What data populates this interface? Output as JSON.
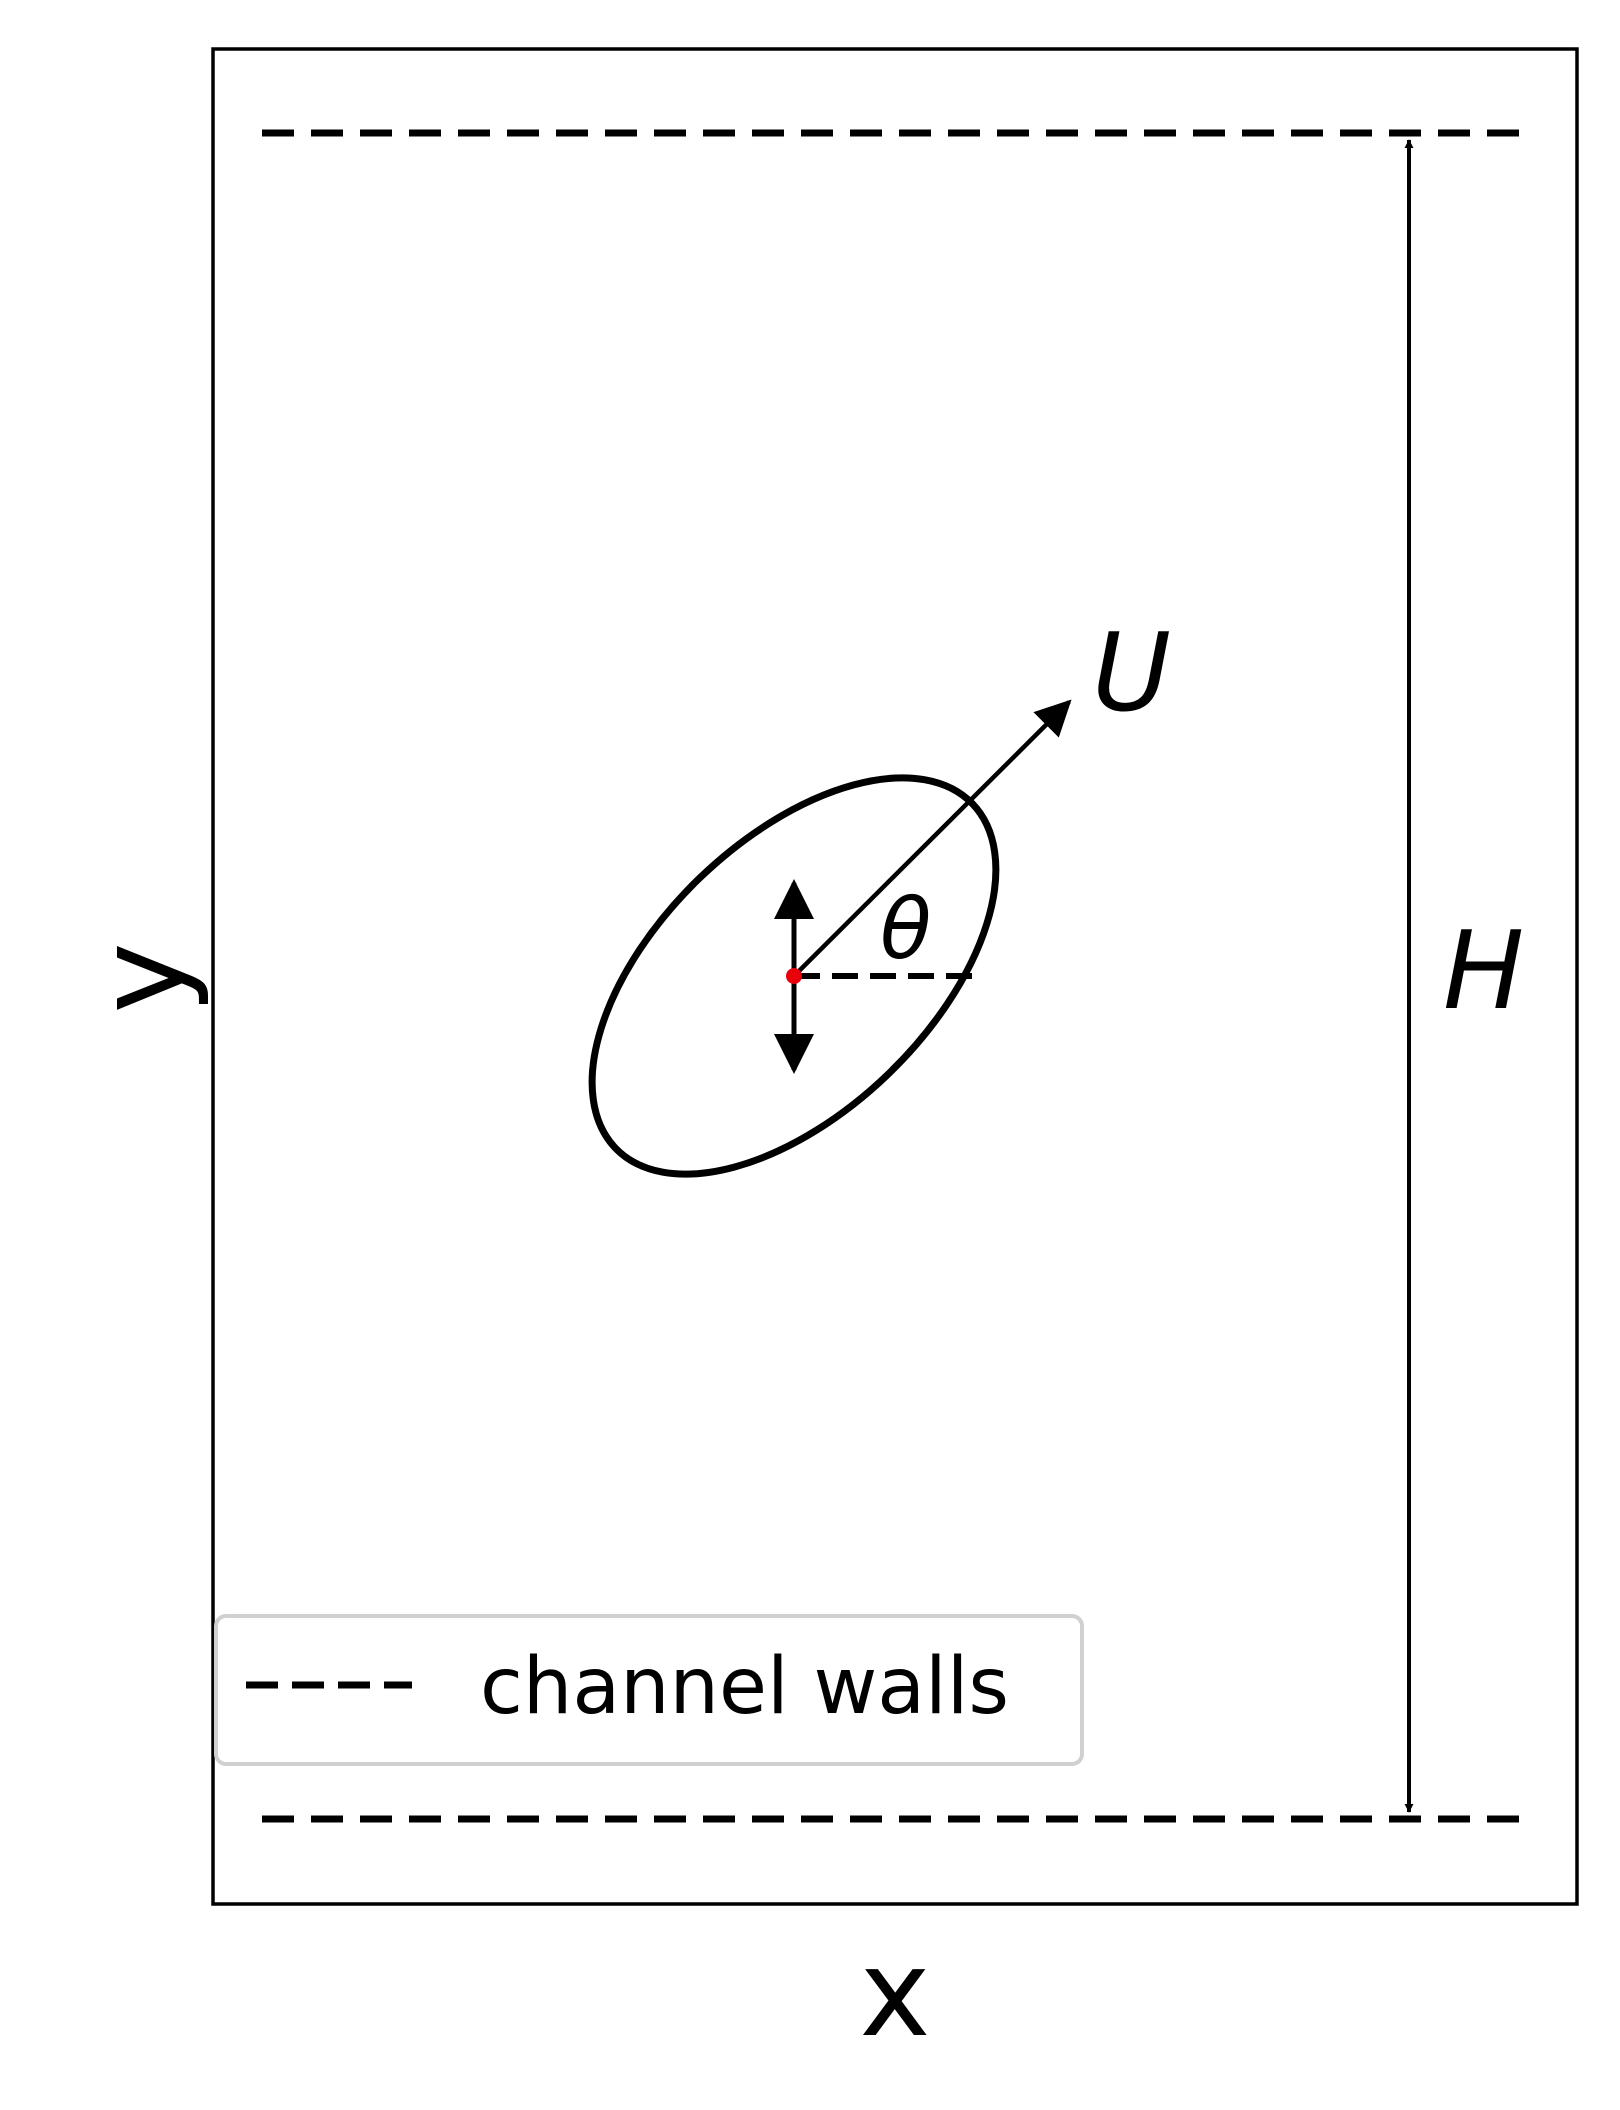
{
  "axes": {
    "xlabel": "x",
    "ylabel": "y"
  },
  "annotations": {
    "velocity": "U",
    "angle": "θ",
    "height": "H"
  },
  "legend": {
    "entry": "channel walls",
    "line_style": "dashed"
  },
  "colors": {
    "ink": "#000000",
    "center_point": "#e8000b",
    "legend_border": "#d0d0d0"
  }
}
